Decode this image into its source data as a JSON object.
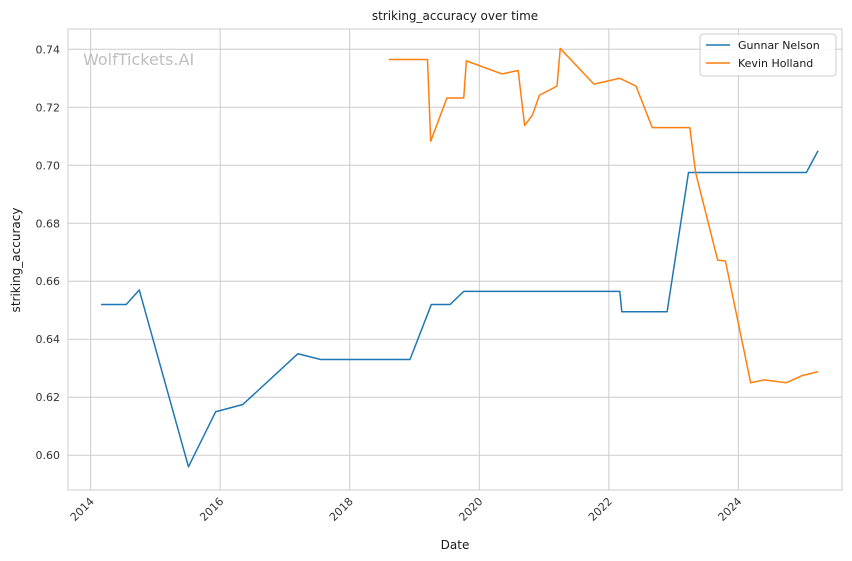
{
  "chart_data": {
    "type": "line",
    "title": "striking_accuracy over time",
    "xlabel": "Date",
    "ylabel": "striking_accuracy",
    "watermark": "WolfTickets.AI",
    "xlim": [
      2013.65,
      2025.6
    ],
    "ylim": [
      0.588,
      0.747
    ],
    "x_ticks": [
      2014,
      2016,
      2018,
      2020,
      2022,
      2024
    ],
    "y_ticks": [
      "0.60",
      "0.62",
      "0.64",
      "0.66",
      "0.68",
      "0.70",
      "0.72",
      "0.74"
    ],
    "grid": true,
    "legend_position": "top-right",
    "series": [
      {
        "name": "Gunnar Nelson",
        "color": "#1f77b4",
        "x": [
          2014.16,
          2014.55,
          2014.75,
          2015.51,
          2015.93,
          2016.35,
          2017.2,
          2017.55,
          2018.93,
          2019.26,
          2019.55,
          2019.76,
          2022.17,
          2022.2,
          2022.9,
          2023.23,
          2025.05,
          2025.23
        ],
        "y": [
          0.652,
          0.652,
          0.657,
          0.596,
          0.615,
          0.6175,
          0.635,
          0.633,
          0.633,
          0.652,
          0.652,
          0.6565,
          0.6565,
          0.6495,
          0.6495,
          0.6975,
          0.6975,
          0.705
        ]
      },
      {
        "name": "Kevin Holland",
        "color": "#ff7f0e",
        "x": [
          2018.6,
          2019.2,
          2019.25,
          2019.5,
          2019.76,
          2019.8,
          2020.35,
          2020.6,
          2020.7,
          2020.82,
          2020.93,
          2021.2,
          2021.25,
          2021.77,
          2022.17,
          2022.42,
          2022.67,
          2023.25,
          2023.34,
          2023.68,
          2023.8,
          2024.19,
          2024.4,
          2024.74,
          2024.99,
          2025.23
        ],
        "y": [
          0.7365,
          0.7365,
          0.7083,
          0.7232,
          0.7232,
          0.736,
          0.7315,
          0.7327,
          0.7137,
          0.7173,
          0.7242,
          0.7273,
          0.7403,
          0.728,
          0.73,
          0.7273,
          0.713,
          0.713,
          0.6975,
          0.6673,
          0.667,
          0.625,
          0.626,
          0.625,
          0.6275,
          0.6288
        ]
      }
    ]
  }
}
